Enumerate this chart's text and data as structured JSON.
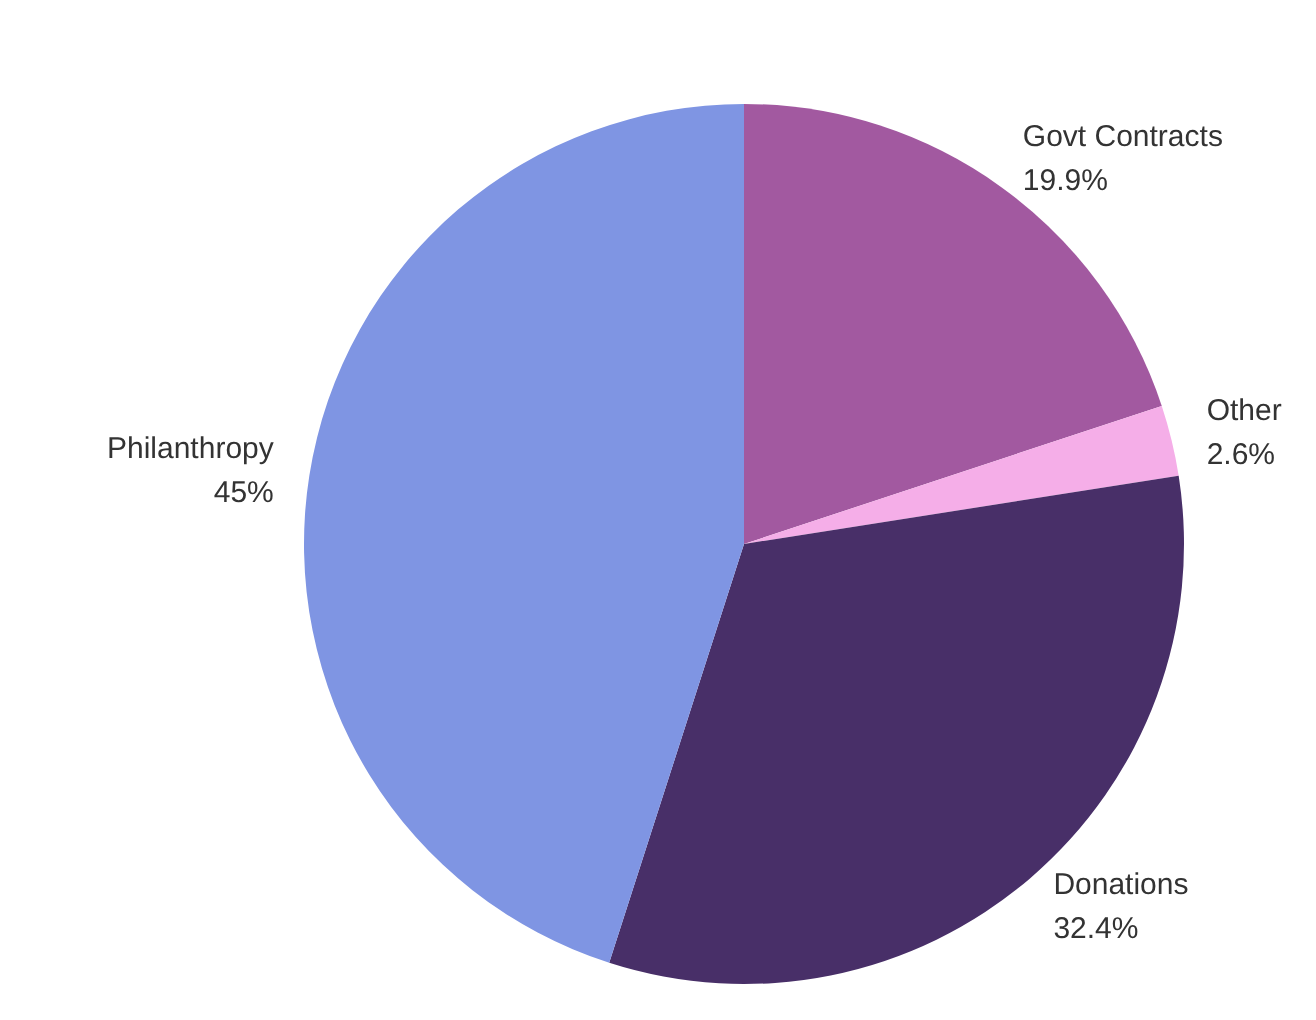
{
  "chart_data": {
    "type": "pie",
    "categories": [
      "Govt Contracts",
      "Other",
      "Donations",
      "Philanthropy"
    ],
    "values": [
      19.9,
      2.6,
      32.4,
      45
    ],
    "colors": [
      "#a259a0",
      "#f5aee8",
      "#482f68",
      "#7f95e3"
    ],
    "value_labels": [
      "19.9%",
      "2.6%",
      "32.4%",
      "45%"
    ]
  }
}
